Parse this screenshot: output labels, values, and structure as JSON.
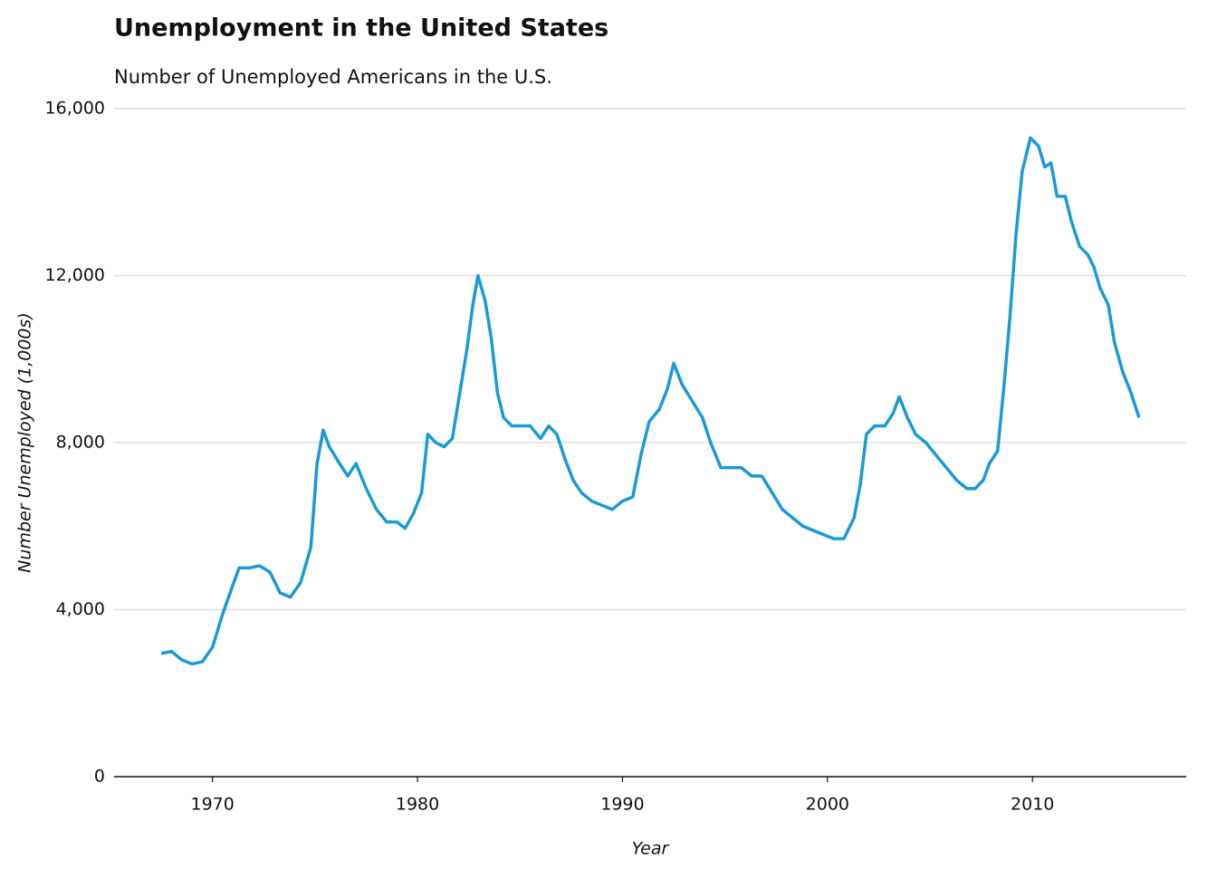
{
  "chart_data": {
    "type": "line",
    "title": "Unemployment in the United States",
    "subtitle": "Number of Unemployed Americans in the U.S.",
    "x_label": "Year",
    "y_label": "Number Unemployed (1,000s)",
    "color": "#1a9ad6",
    "grid": true,
    "xlim": [
      1965.2,
      2017.5
    ],
    "ylim": [
      0,
      16000
    ],
    "xticks": [
      1970,
      1980,
      1990,
      2000,
      2010
    ],
    "yticks": [
      0,
      {
        "value": 4000,
        "label": "4,000"
      },
      {
        "value": 8000,
        "label": "8,000"
      },
      {
        "value": 12000,
        "label": "12,000"
      },
      {
        "value": 16000,
        "label": "16,000"
      }
    ],
    "x": [
      1967.5,
      1968.0,
      1968.5,
      1969.0,
      1969.5,
      1970.0,
      1970.5,
      1971.0,
      1971.3,
      1971.8,
      1972.3,
      1972.8,
      1973.3,
      1973.8,
      1974.3,
      1974.8,
      1975.1,
      1975.4,
      1975.7,
      1976.2,
      1976.6,
      1977.0,
      1977.5,
      1978.0,
      1978.5,
      1979.0,
      1979.4,
      1979.8,
      1980.2,
      1980.5,
      1980.9,
      1981.3,
      1981.7,
      1982.0,
      1982.4,
      1982.7,
      1982.95,
      1983.3,
      1983.6,
      1983.9,
      1984.2,
      1984.6,
      1985.0,
      1985.5,
      1986.0,
      1986.4,
      1986.8,
      1987.2,
      1987.6,
      1988.0,
      1988.5,
      1989.0,
      1989.5,
      1990.0,
      1990.5,
      1990.9,
      1991.3,
      1991.8,
      1992.2,
      1992.5,
      1992.9,
      1993.4,
      1993.9,
      1994.3,
      1994.8,
      1995.3,
      1995.8,
      1996.3,
      1996.8,
      1997.3,
      1997.8,
      1998.3,
      1998.8,
      1999.3,
      1999.8,
      2000.3,
      2000.8,
      2001.3,
      2001.6,
      2001.9,
      2002.3,
      2002.8,
      2003.2,
      2003.5,
      2003.9,
      2004.3,
      2004.8,
      2005.3,
      2005.8,
      2006.3,
      2006.8,
      2007.2,
      2007.6,
      2007.9,
      2008.3,
      2008.6,
      2008.9,
      2009.2,
      2009.5,
      2009.9,
      2010.3,
      2010.6,
      2010.9,
      2011.2,
      2011.6,
      2011.9,
      2012.3,
      2012.7,
      2013.0,
      2013.3,
      2013.7,
      2014.0,
      2014.4,
      2014.8,
      2015.2
    ],
    "values": [
      2950,
      3000,
      2800,
      2700,
      2750,
      3100,
      3900,
      4600,
      5000,
      5000,
      5050,
      4900,
      4400,
      4300,
      4650,
      5500,
      7500,
      8300,
      7900,
      7500,
      7200,
      7500,
      6900,
      6400,
      6100,
      6100,
      5950,
      6300,
      6800,
      8200,
      8000,
      7900,
      8100,
      9000,
      10200,
      11300,
      12000,
      11400,
      10500,
      9200,
      8600,
      8400,
      8400,
      8400,
      8100,
      8400,
      8200,
      7600,
      7100,
      6800,
      6600,
      6500,
      6400,
      6600,
      6700,
      7700,
      8500,
      8800,
      9300,
      9900,
      9400,
      9000,
      8600,
      8000,
      7400,
      7400,
      7400,
      7200,
      7200,
      6800,
      6400,
      6200,
      6000,
      5900,
      5800,
      5700,
      5700,
      6200,
      7000,
      8200,
      8400,
      8400,
      8700,
      9100,
      8600,
      8200,
      8000,
      7700,
      7400,
      7100,
      6900,
      6900,
      7100,
      7500,
      7800,
      9300,
      11000,
      13000,
      14500,
      15300,
      15100,
      14600,
      14700,
      13900,
      13900,
      13300,
      12700,
      12500,
      12200,
      11700,
      11300,
      10400,
      9700,
      9200,
      8600
    ]
  }
}
